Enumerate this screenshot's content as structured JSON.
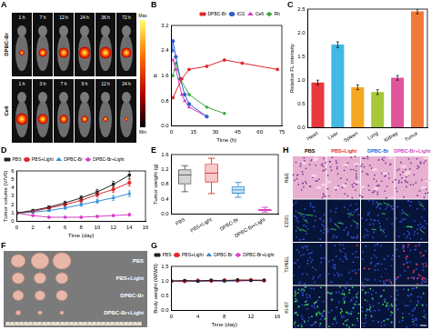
{
  "chart_data": [
    {
      "panel": "B",
      "type": "line",
      "x_label": "Time (h)",
      "y_label": "R",
      "xlim": [
        0,
        75
      ],
      "xticks": [
        0,
        15,
        30,
        45,
        60,
        75
      ],
      "ylim": [
        0,
        3.2
      ],
      "yticks": [
        {
          "value": 0,
          "label": "0.0"
        },
        {
          "value": 0.8,
          "label": "0.8"
        },
        {
          "value": 1.6,
          "label": "1.6"
        },
        {
          "value": 2.4,
          "label": "2.4"
        },
        {
          "value": 3.2,
          "label": "3.2"
        }
      ],
      "grid": false,
      "legend": "upper right",
      "series": [
        {
          "name": "DPBC-Br",
          "color": "#e0262b",
          "marker": "square",
          "x": [
            1,
            7,
            12,
            24,
            36,
            48,
            72
          ],
          "values": [
            0.9,
            1.5,
            1.8,
            1.9,
            2.1,
            2.0,
            1.8
          ]
        },
        {
          "name": "ICG",
          "color": "#2f5fd0",
          "marker": "circle",
          "x": [
            0.5,
            1,
            3,
            6,
            9,
            12,
            24
          ],
          "values": [
            2.4,
            2.7,
            2.2,
            1.5,
            1.0,
            0.7,
            0.3
          ]
        },
        {
          "name": "Ce6",
          "color": "#d63fc4",
          "marker": "triangle",
          "x": [
            1,
            3,
            7,
            9,
            12,
            24
          ],
          "values": [
            2.1,
            1.8,
            1.0,
            0.8,
            0.6,
            0.3
          ]
        },
        {
          "name": "Rb",
          "color": "#3aa845",
          "marker": "diamond",
          "x": [
            1,
            3,
            6,
            12,
            24,
            36
          ],
          "values": [
            1.6,
            2.0,
            1.5,
            1.0,
            0.6,
            0.4
          ]
        }
      ]
    },
    {
      "panel": "C",
      "type": "bar",
      "y_label": "Relative FL intensity",
      "categories": [
        "Heart",
        "Liver",
        "Spleen",
        "Lung",
        "Kidney",
        "Tumor"
      ],
      "values": [
        0.95,
        1.75,
        0.85,
        0.75,
        1.05,
        2.45
      ],
      "errors": [
        0.05,
        0.06,
        0.05,
        0.05,
        0.05,
        0.05
      ],
      "colors": [
        "#e8383d",
        "#41b8e6",
        "#f5a623",
        "#a6c83a",
        "#e0559a",
        "#f07a3a"
      ],
      "ylim": [
        0,
        2.5
      ],
      "yticks": [
        {
          "value": 0,
          "label": "0.0"
        },
        {
          "value": 0.5,
          "label": "0.5"
        },
        {
          "value": 1,
          "label": "1.0"
        },
        {
          "value": 1.5,
          "label": "1.5"
        },
        {
          "value": 2,
          "label": "2.0"
        },
        {
          "value": 2.5,
          "label": "2.5"
        }
      ],
      "grid": false
    },
    {
      "panel": "D",
      "type": "line",
      "x_label": "Time (day)",
      "y_label": "Tumor volume (V/V0)",
      "xlim": [
        0,
        16
      ],
      "xticks": [
        0,
        2,
        4,
        6,
        8,
        10,
        12,
        14,
        16
      ],
      "ylim": [
        0,
        6
      ],
      "yticks": [
        0,
        1,
        2,
        3,
        4,
        5,
        6
      ],
      "grid": false,
      "legend": "upper left",
      "x": [
        0,
        2,
        4,
        6,
        8,
        10,
        12,
        14
      ],
      "series": [
        {
          "name": "PBS",
          "color": "#222222",
          "marker": "square",
          "values": [
            1,
            1.3,
            1.7,
            2.2,
            2.8,
            3.5,
            4.4,
            5.5
          ],
          "errors": [
            0,
            0.1,
            0.15,
            0.2,
            0.25,
            0.3,
            0.35,
            0.45
          ]
        },
        {
          "name": "PBS+Light",
          "color": "#e0262b",
          "marker": "circle",
          "values": [
            1,
            1.2,
            1.6,
            2.0,
            2.5,
            3.2,
            3.8,
            4.6
          ],
          "errors": [
            0,
            0.1,
            0.15,
            0.2,
            0.25,
            0.3,
            0.35,
            0.4
          ]
        },
        {
          "name": "DPBC-Br",
          "color": "#2f8fd6",
          "marker": "triangle",
          "values": [
            1,
            1.1,
            1.3,
            1.6,
            2.0,
            2.4,
            2.8,
            3.3
          ],
          "errors": [
            0,
            0.08,
            0.1,
            0.15,
            0.2,
            0.25,
            0.3,
            0.35
          ]
        },
        {
          "name": "DPBC-Br+Light",
          "color": "#d63fc4",
          "marker": "diamond",
          "values": [
            1,
            0.7,
            0.5,
            0.5,
            0.5,
            0.6,
            0.7,
            0.8
          ],
          "errors": [
            0,
            0.08,
            0.08,
            0.08,
            0.1,
            0.1,
            0.12,
            0.15
          ]
        }
      ]
    },
    {
      "panel": "E",
      "type": "box",
      "y_label": "Tumor weight (g)",
      "categories": [
        "PBS",
        "PBS+Light",
        "DPBC-Br",
        "DPBC-Br+Light"
      ],
      "min": [
        0.6,
        0.55,
        0.45,
        0.05
      ],
      "q1": [
        0.8,
        0.85,
        0.55,
        0.08
      ],
      "median": [
        1.05,
        1.1,
        0.65,
        0.1
      ],
      "q3": [
        1.2,
        1.35,
        0.75,
        0.13
      ],
      "max": [
        1.3,
        1.5,
        0.85,
        0.18
      ],
      "colors": [
        "#555555",
        "#e0262b",
        "#2f8fd6",
        "#d63fc4"
      ],
      "ylim": [
        0,
        1.6
      ],
      "yticks": [
        {
          "value": 0,
          "label": "0.0"
        },
        {
          "value": 0.4,
          "label": "0.4"
        },
        {
          "value": 0.8,
          "label": "0.8"
        },
        {
          "value": 1.2,
          "label": "1.2"
        },
        {
          "value": 1.6,
          "label": "1.6"
        }
      ],
      "grid": false
    },
    {
      "panel": "G",
      "type": "line",
      "x_label": "Time (day)",
      "y_label": "Body weight (W/W0)",
      "xlim": [
        0,
        16
      ],
      "xticks": [
        0,
        4,
        8,
        12,
        16
      ],
      "ylim": [
        0,
        1.5
      ],
      "yticks": [
        {
          "value": 0,
          "label": "0.0"
        },
        {
          "value": 0.5,
          "label": "0.5"
        },
        {
          "value": 1,
          "label": "1.0"
        },
        {
          "value": 1.5,
          "label": "1.5"
        }
      ],
      "grid": false,
      "legend": "upper left",
      "x": [
        0,
        2,
        4,
        6,
        8,
        10,
        12,
        14
      ],
      "series": [
        {
          "name": "PBS",
          "color": "#222222",
          "marker": "square",
          "values": [
            1,
            1.02,
            1.0,
            1.03,
            1.01,
            1.04,
            1.02,
            1.03
          ]
        },
        {
          "name": "PBS+Light",
          "color": "#e0262b",
          "marker": "circle",
          "values": [
            1,
            1.0,
            1.02,
            1.01,
            1.03,
            1.02,
            1.04,
            1.02
          ]
        },
        {
          "name": "DPBC-Br",
          "color": "#2f8fd6",
          "marker": "triangle",
          "values": [
            1,
            1.01,
            0.99,
            1.02,
            1.0,
            1.01,
            1.03,
            1.02
          ]
        },
        {
          "name": "DPBC-Br+Light",
          "color": "#d63fc4",
          "marker": "diamond",
          "values": [
            1,
            0.98,
            1.0,
            0.99,
            1.01,
            1.0,
            1.02,
            1.01
          ]
        }
      ]
    }
  ],
  "image_panels": {
    "scan": {
      "panel": "A",
      "rows": [
        {
          "label": "DPBC-Br",
          "times": [
            "1 h",
            "7 h",
            "12 h",
            "24 h",
            "36 h",
            "72 h"
          ]
        },
        {
          "label": "Ce6",
          "times": [
            "1 h",
            "3 h",
            "7 h",
            "9 h",
            "12 h",
            "24 h"
          ]
        }
      ],
      "colorbar": [
        "Max",
        "Min"
      ]
    },
    "photo": {
      "panel": "F",
      "groups": [
        "PBS",
        "PBS+Light",
        "DPBC-Br",
        "DPBC-Br+Light"
      ]
    },
    "histology": {
      "panel": "H",
      "columns": [
        {
          "label": "PBS",
          "color": "#000000"
        },
        {
          "label": "PBS+Light",
          "color": "#e0262b"
        },
        {
          "label": "DPBC-Br",
          "color": "#2f5fd0"
        },
        {
          "label": "DPBC-Br+Light",
          "color": "#d63fc4"
        }
      ],
      "rows": [
        "H&E",
        "CD31",
        "TUNEL",
        "Ki-67"
      ]
    }
  }
}
